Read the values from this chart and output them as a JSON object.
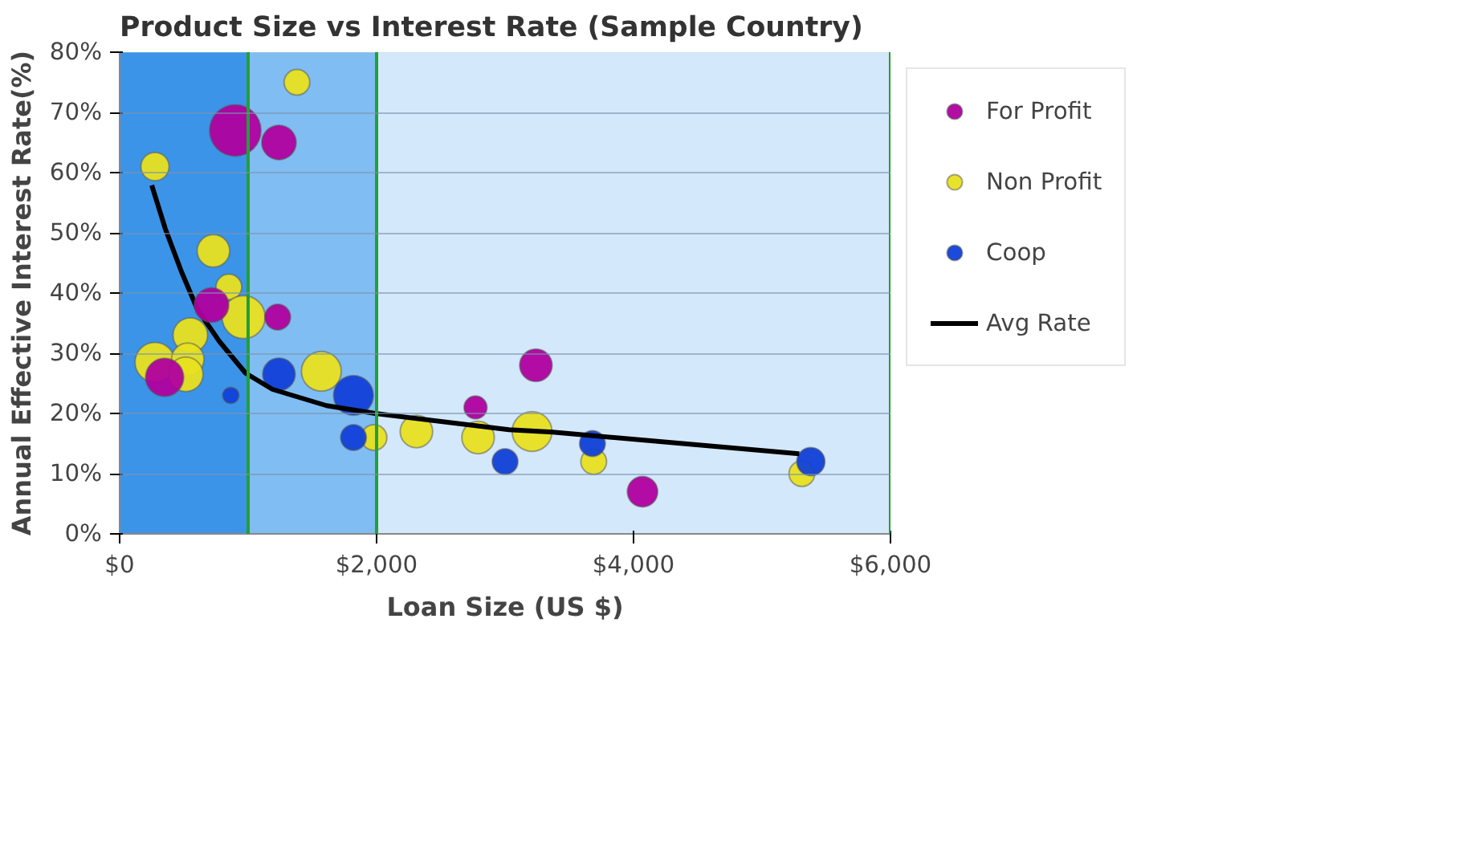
{
  "chart_data": {
    "type": "bubble",
    "title": "Product Size vs Interest Rate (Sample Country)",
    "xlabel": "Loan Size (US $)",
    "ylabel": "Annual Effective Interest Rate(%)",
    "xlim": [
      0,
      6000
    ],
    "ylim": [
      0,
      80
    ],
    "xticks": [
      {
        "value": 0,
        "label": "$0"
      },
      {
        "value": 2000,
        "label": "$2,000"
      },
      {
        "value": 4000,
        "label": "$4,000"
      },
      {
        "value": 6000,
        "label": "$6,000"
      }
    ],
    "yticks": [
      {
        "value": 0,
        "label": "0%"
      },
      {
        "value": 10,
        "label": "10%"
      },
      {
        "value": 20,
        "label": "20%"
      },
      {
        "value": 30,
        "label": "30%"
      },
      {
        "value": 40,
        "label": "40%"
      },
      {
        "value": 50,
        "label": "50%"
      },
      {
        "value": 60,
        "label": "60%"
      },
      {
        "value": 70,
        "label": "70%"
      },
      {
        "value": 80,
        "label": "80%"
      }
    ],
    "grid": "y",
    "legend": "right",
    "marker": "circle",
    "bands": [
      {
        "axis": "x",
        "from": 0,
        "to": 1000,
        "color": "#3b94e8"
      },
      {
        "axis": "x",
        "from": 1000,
        "to": 2000,
        "color": "#80bdf2"
      },
      {
        "axis": "x",
        "from": 2000,
        "to": 6000,
        "color": "#d4e8fb"
      }
    ],
    "ref_lines": [
      {
        "axis": "x",
        "value": 1000,
        "color": "#22a033"
      },
      {
        "axis": "x",
        "value": 2000,
        "color": "#22a033"
      },
      {
        "axis": "x",
        "value": 6000,
        "color": "#22a033"
      }
    ],
    "series": [
      {
        "name": "For Profit",
        "color": "#b0009f",
        "x": [
          900,
          1240,
          350,
          715,
          1230,
          2770,
          3240,
          4070
        ],
        "values": [
          67,
          65,
          26,
          38,
          36,
          21,
          28,
          7
        ],
        "sizes": [
          1,
          0.45,
          0.55,
          0.45,
          0.25,
          0.2,
          0.4,
          0.35
        ]
      },
      {
        "name": "Non Profit",
        "color": "#e8e020",
        "x": [
          1380,
          275,
          730,
          850,
          965,
          550,
          275,
          530,
          515,
          1570,
          1980,
          2310,
          2790,
          3210,
          3690,
          5310
        ],
        "values": [
          75,
          61,
          47,
          41,
          36,
          33,
          28.5,
          29,
          26.5,
          27,
          16,
          17,
          16,
          17,
          12,
          10
        ],
        "sizes": [
          0.25,
          0.3,
          0.4,
          0.25,
          0.7,
          0.45,
          0.6,
          0.4,
          0.45,
          0.6,
          0.25,
          0.4,
          0.4,
          0.6,
          0.25,
          0.25
        ]
      },
      {
        "name": "Coop",
        "color": "#1040d8",
        "x": [
          865,
          1240,
          1820,
          1820,
          3000,
          3680,
          5380
        ],
        "values": [
          23,
          26.5,
          23,
          16,
          12,
          15,
          12
        ],
        "sizes": [
          0.1,
          0.4,
          0.6,
          0.25,
          0.25,
          0.25,
          0.3
        ]
      },
      {
        "name": "Avg Rate",
        "type": "line",
        "color": "#000000",
        "marker": "none",
        "x": [
          250,
          355,
          480,
          605,
          775,
          980,
          1190,
          1610,
          1990,
          3030,
          3370,
          5290
        ],
        "values": [
          57.9,
          50.7,
          43.6,
          37.3,
          32,
          26.7,
          24,
          21.3,
          20,
          17.3,
          16.9,
          13.3
        ]
      }
    ]
  }
}
